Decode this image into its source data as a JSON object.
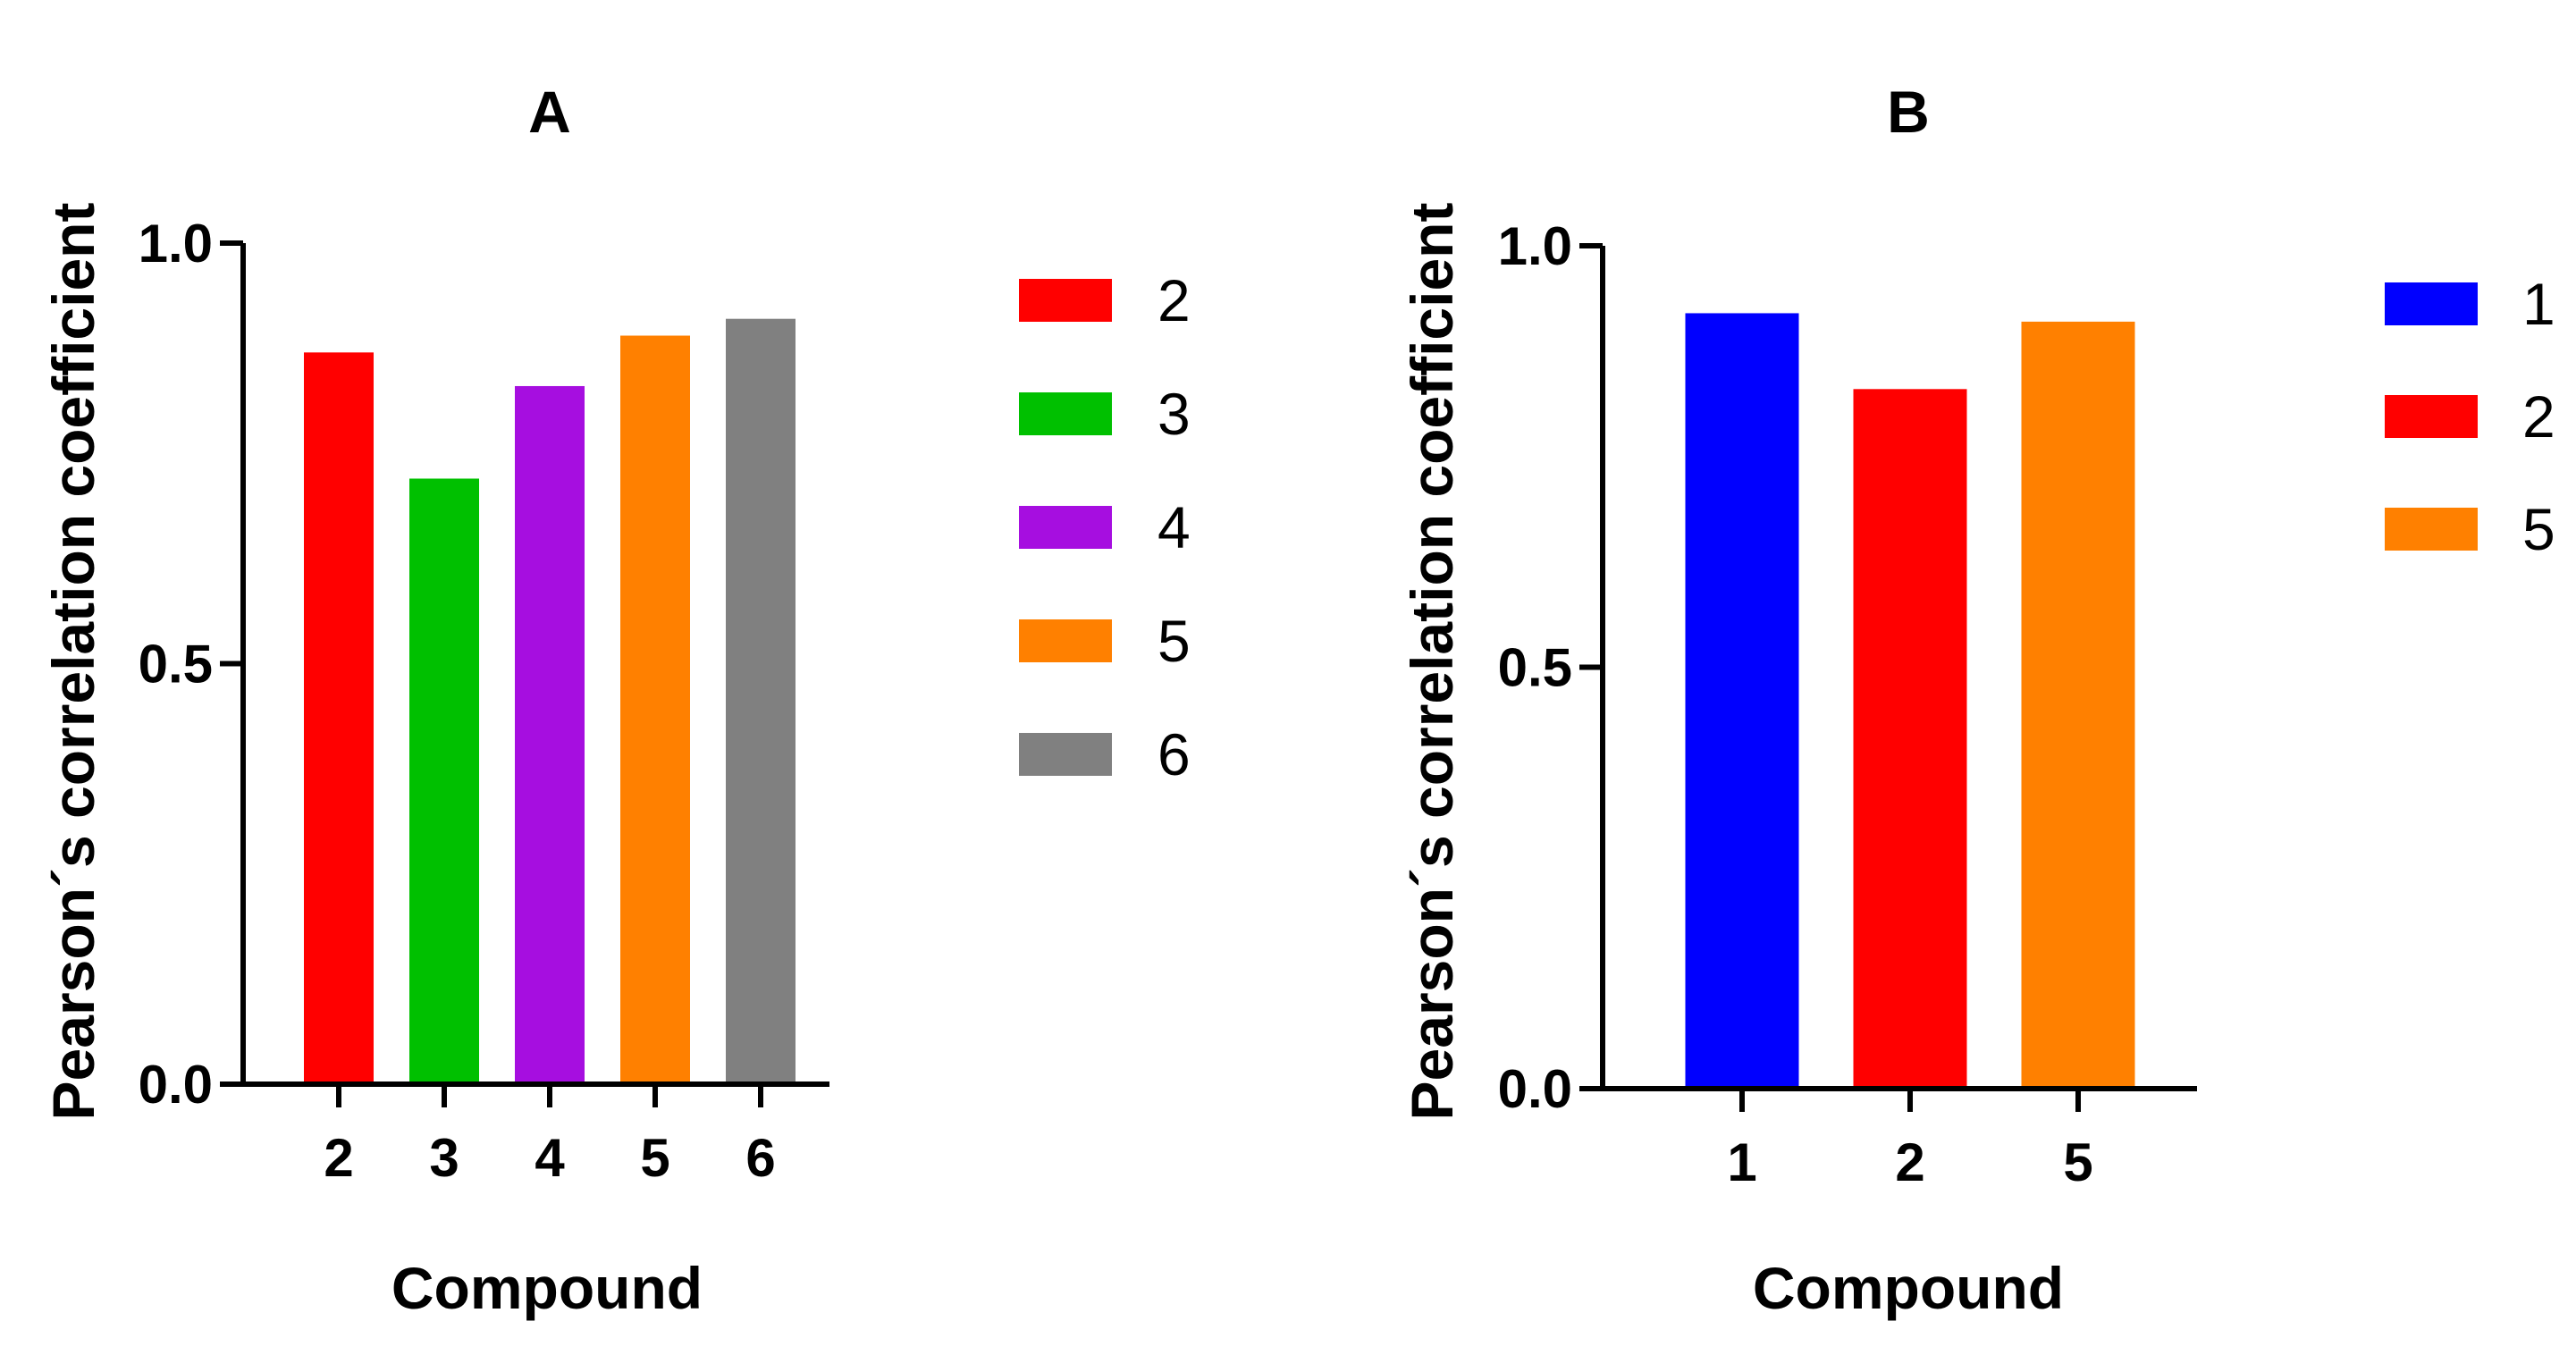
{
  "chart_data": [
    {
      "panel": "A",
      "type": "bar",
      "title": "A",
      "xlabel": "Compound",
      "ylabel": "Pearson´s correlation coefficient",
      "ylim": [
        0.0,
        1.0
      ],
      "yticks": [
        0.0,
        0.5,
        1.0
      ],
      "ytick_labels": [
        "0.0",
        "0.5",
        "1.0"
      ],
      "categories": [
        "2",
        "3",
        "4",
        "5",
        "6"
      ],
      "values": [
        0.87,
        0.72,
        0.83,
        0.89,
        0.91
      ],
      "colors": [
        "#ff0000",
        "#00c000",
        "#a60ee0",
        "#ff8000",
        "#808080"
      ],
      "legend": {
        "placement": "right",
        "entries": [
          {
            "label": "2",
            "color": "#ff0000"
          },
          {
            "label": "3",
            "color": "#00c000"
          },
          {
            "label": "4",
            "color": "#a60ee0"
          },
          {
            "label": "5",
            "color": "#ff8000"
          },
          {
            "label": "6",
            "color": "#808080"
          }
        ]
      },
      "grid": false
    },
    {
      "panel": "B",
      "type": "bar",
      "title": "B",
      "xlabel": "Compound",
      "ylabel": "Pearson´s correlation coefficient",
      "ylim": [
        0.0,
        1.0
      ],
      "yticks": [
        0.0,
        0.5,
        1.0
      ],
      "ytick_labels": [
        "0.0",
        "0.5",
        "1.0"
      ],
      "categories": [
        "1",
        "2",
        "5"
      ],
      "values": [
        0.92,
        0.83,
        0.91
      ],
      "colors": [
        "#0000ff",
        "#ff0000",
        "#ff8000"
      ],
      "legend": {
        "placement": "right",
        "entries": [
          {
            "label": "1",
            "color": "#0000ff"
          },
          {
            "label": "2",
            "color": "#ff0000"
          },
          {
            "label": "5",
            "color": "#ff8000"
          }
        ]
      },
      "grid": false
    }
  ]
}
